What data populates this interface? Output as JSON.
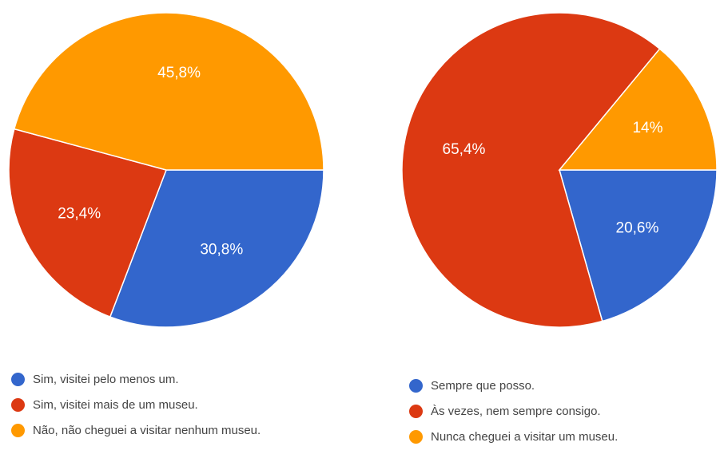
{
  "chart_data": [
    {
      "type": "pie",
      "categories": [
        "Sim, visitei pelo menos um.",
        "Sim, visitei mais de um museu.",
        "Não, não cheguei a visitar nenhum museu."
      ],
      "values": [
        30.8,
        23.4,
        45.8
      ],
      "value_labels": [
        "30,8%",
        "23,4%",
        "45,8%"
      ],
      "colors": [
        "#3366cc",
        "#dc3912",
        "#ff9900"
      ],
      "legend": "bottom"
    },
    {
      "type": "pie",
      "categories": [
        "Sempre que posso.",
        "Às vezes, nem sempre consigo.",
        "Nunca cheguei a visitar um museu."
      ],
      "values": [
        20.6,
        65.4,
        14
      ],
      "value_labels": [
        "20,6%",
        "65,4%",
        "14%"
      ],
      "colors": [
        "#3366cc",
        "#dc3912",
        "#ff9900"
      ],
      "legend": "bottom"
    }
  ]
}
